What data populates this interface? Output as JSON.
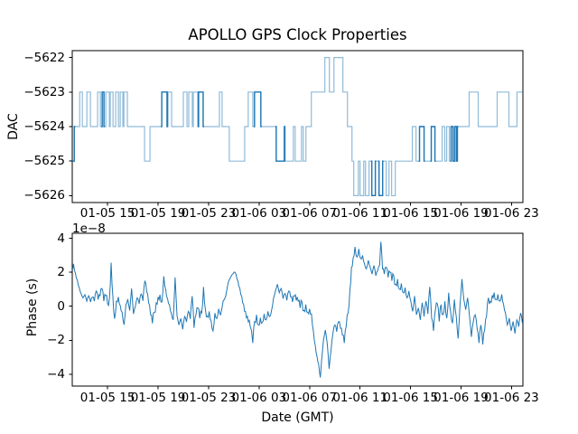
{
  "figure": {
    "title": "APOLLO GPS Clock Properties",
    "dac_ylabel": "DAC",
    "phase_ylabel": "Phase (s)",
    "xlabel": "Date (GMT)",
    "offset_text": "1e−8"
  },
  "colors": {
    "line": "#1f77b4",
    "axis": "#000000",
    "background": "#ffffff"
  },
  "chart_data": [
    {
      "type": "line",
      "subtype": "step-post",
      "title": "APOLLO GPS Clock Properties",
      "ylabel": "DAC",
      "grid": false,
      "legend": null,
      "x_unit": "hours offset within shown date range",
      "xlim": [
        0.2,
        35.9
      ],
      "ylim": [
        -5626.2,
        -5621.8
      ],
      "yticks": [
        -5622,
        -5623,
        -5624,
        -5625,
        -5626
      ],
      "xticks_hours": [
        3,
        7,
        11,
        15,
        19,
        23,
        27,
        31,
        35
      ],
      "xtick_labels": [
        "01-05 15",
        "01-05 19",
        "01-05 23",
        "01-06 03",
        "01-06 07",
        "01-06 11",
        "01-06 15",
        "01-06 19",
        "01-06 23"
      ],
      "steps": [
        [
          0.21,
          -5625
        ],
        [
          0.36,
          -5624
        ],
        [
          0.79,
          -5623
        ],
        [
          1.0,
          -5624
        ],
        [
          1.36,
          -5623
        ],
        [
          1.64,
          -5624
        ],
        [
          2.21,
          -5623
        ],
        [
          2.43,
          -5624
        ],
        [
          2.57,
          -5623
        ],
        [
          2.71,
          -5624
        ],
        [
          2.86,
          -5623
        ],
        [
          3.14,
          -5624
        ],
        [
          3.21,
          -5623
        ],
        [
          3.43,
          -5624
        ],
        [
          3.64,
          -5623
        ],
        [
          3.86,
          -5624
        ],
        [
          4.0,
          -5623
        ],
        [
          4.21,
          -5624
        ],
        [
          4.29,
          -5623
        ],
        [
          4.57,
          -5624
        ],
        [
          5.93,
          -5625
        ],
        [
          6.36,
          -5624
        ],
        [
          7.29,
          -5623
        ],
        [
          7.71,
          -5624
        ],
        [
          7.79,
          -5623
        ],
        [
          8.07,
          -5624
        ],
        [
          9.0,
          -5623
        ],
        [
          9.29,
          -5624
        ],
        [
          9.43,
          -5623
        ],
        [
          9.71,
          -5624
        ],
        [
          9.79,
          -5623
        ],
        [
          10.14,
          -5624
        ],
        [
          10.21,
          -5623
        ],
        [
          10.57,
          -5624
        ],
        [
          11.86,
          -5623
        ],
        [
          12.07,
          -5624
        ],
        [
          12.64,
          -5625
        ],
        [
          13.86,
          -5624
        ],
        [
          14.14,
          -5623
        ],
        [
          14.5,
          -5624
        ],
        [
          14.64,
          -5623
        ],
        [
          15.14,
          -5624
        ],
        [
          16.36,
          -5625
        ],
        [
          17.0,
          -5624
        ],
        [
          17.07,
          -5625
        ],
        [
          17.71,
          -5624
        ],
        [
          17.86,
          -5625
        ],
        [
          18.36,
          -5624
        ],
        [
          18.5,
          -5625
        ],
        [
          18.71,
          -5624
        ],
        [
          19.14,
          -5623
        ],
        [
          20.21,
          -5622
        ],
        [
          20.57,
          -5623
        ],
        [
          20.93,
          -5622
        ],
        [
          21.64,
          -5623
        ],
        [
          22.0,
          -5624
        ],
        [
          22.36,
          -5625
        ],
        [
          22.5,
          -5626
        ],
        [
          22.86,
          -5625
        ],
        [
          23.0,
          -5626
        ],
        [
          23.29,
          -5625
        ],
        [
          23.43,
          -5626
        ],
        [
          23.71,
          -5625
        ],
        [
          23.93,
          -5626
        ],
        [
          24.21,
          -5625
        ],
        [
          24.5,
          -5626
        ],
        [
          24.79,
          -5625
        ],
        [
          25.07,
          -5626
        ],
        [
          25.29,
          -5625
        ],
        [
          25.5,
          -5626
        ],
        [
          25.79,
          -5625
        ],
        [
          27.14,
          -5624
        ],
        [
          27.43,
          -5625
        ],
        [
          27.71,
          -5624
        ],
        [
          28.07,
          -5625
        ],
        [
          28.64,
          -5624
        ],
        [
          28.93,
          -5625
        ],
        [
          29.5,
          -5624
        ],
        [
          29.71,
          -5625
        ],
        [
          29.86,
          -5624
        ],
        [
          30.07,
          -5625
        ],
        [
          30.21,
          -5624
        ],
        [
          30.36,
          -5625
        ],
        [
          30.5,
          -5624
        ],
        [
          30.64,
          -5625
        ],
        [
          30.71,
          -5624
        ],
        [
          31.64,
          -5623
        ],
        [
          32.36,
          -5624
        ],
        [
          33.86,
          -5623
        ],
        [
          34.79,
          -5624
        ],
        [
          35.43,
          -5623
        ],
        [
          35.9,
          -5623
        ]
      ],
      "bold_intervals": [
        [
          0.21,
          0.38
        ],
        [
          2.57,
          2.71
        ],
        [
          7.29,
          7.71
        ],
        [
          10.21,
          10.57
        ],
        [
          14.64,
          15.14
        ],
        [
          16.36,
          17.0
        ],
        [
          23.93,
          24.21
        ],
        [
          24.5,
          24.79
        ],
        [
          27.71,
          28.07
        ],
        [
          28.64,
          28.93
        ],
        [
          30.21,
          30.71
        ]
      ]
    },
    {
      "type": "line",
      "ylabel": "Phase (s)",
      "xlabel": "Date (GMT)",
      "offset_text": "1e−8",
      "grid": false,
      "legend": null,
      "value_scale": 1e-08,
      "xlim": [
        0.2,
        35.9
      ],
      "ylim": [
        -4.7,
        4.3
      ],
      "yticks": [
        4,
        2,
        0,
        -2,
        -4
      ],
      "xticks_hours": [
        3,
        7,
        11,
        15,
        19,
        23,
        27,
        31,
        35
      ],
      "xtick_labels": [
        "01-05 15",
        "01-05 19",
        "01-05 23",
        "01-06 03",
        "01-06 07",
        "01-06 11",
        "01-06 15",
        "01-06 19",
        "01-06 23"
      ],
      "points": [
        [
          0.21,
          2.3
        ],
        [
          0.3,
          2.5
        ],
        [
          0.45,
          1.95
        ],
        [
          0.6,
          1.55
        ],
        [
          0.75,
          1.1
        ],
        [
          0.9,
          0.75
        ],
        [
          1.05,
          0.5
        ],
        [
          1.2,
          0.68
        ],
        [
          1.35,
          0.3
        ],
        [
          1.5,
          0.62
        ],
        [
          1.65,
          0.25
        ],
        [
          1.8,
          0.55
        ],
        [
          1.95,
          0.3
        ],
        [
          2.1,
          0.9
        ],
        [
          2.25,
          0.4
        ],
        [
          2.4,
          0.62
        ],
        [
          2.55,
          1.05
        ],
        [
          2.7,
          0.3
        ],
        [
          2.85,
          0.62
        ],
        [
          3.0,
          0.15
        ],
        [
          3.15,
          0.5
        ],
        [
          3.28,
          2.57
        ],
        [
          3.42,
          0.55
        ],
        [
          3.55,
          -0.73
        ],
        [
          3.7,
          0.3
        ],
        [
          3.85,
          0.55
        ],
        [
          4.0,
          0.05
        ],
        [
          4.15,
          -0.35
        ],
        [
          4.3,
          -1.09
        ],
        [
          4.45,
          0.1
        ],
        [
          4.6,
          0.42
        ],
        [
          4.75,
          -0.25
        ],
        [
          4.9,
          1.05
        ],
        [
          5.05,
          -0.45
        ],
        [
          5.2,
          0.0
        ],
        [
          5.35,
          0.5
        ],
        [
          5.5,
          0.15
        ],
        [
          5.65,
          0.72
        ],
        [
          5.8,
          0.32
        ],
        [
          5.95,
          1.5
        ],
        [
          6.1,
          0.85
        ],
        [
          6.25,
          0.2
        ],
        [
          6.4,
          -0.5
        ],
        [
          6.55,
          -1.0
        ],
        [
          6.7,
          -0.35
        ],
        [
          6.85,
          0.2
        ],
        [
          7.0,
          0.55
        ],
        [
          7.15,
          0.68
        ],
        [
          7.3,
          0.25
        ],
        [
          7.45,
          1.77
        ],
        [
          7.6,
          1.0
        ],
        [
          7.75,
          0.45
        ],
        [
          7.9,
          0.1
        ],
        [
          8.05,
          -0.42
        ],
        [
          8.2,
          -0.8
        ],
        [
          8.35,
          1.7
        ],
        [
          8.5,
          -0.55
        ],
        [
          8.65,
          -1.1
        ],
        [
          8.8,
          -0.72
        ],
        [
          8.95,
          -1.36
        ],
        [
          9.1,
          -0.6
        ],
        [
          9.25,
          -0.92
        ],
        [
          9.4,
          -0.3
        ],
        [
          9.55,
          -0.75
        ],
        [
          9.7,
          0.6
        ],
        [
          9.85,
          -1.27
        ],
        [
          10.0,
          -0.5
        ],
        [
          10.15,
          -0.1
        ],
        [
          10.3,
          -0.7
        ],
        [
          10.45,
          -0.4
        ],
        [
          10.6,
          1.14
        ],
        [
          10.75,
          -0.2
        ],
        [
          10.9,
          -0.58
        ],
        [
          11.05,
          -0.3
        ],
        [
          11.2,
          -0.85
        ],
        [
          11.35,
          -1.45
        ],
        [
          11.5,
          -0.4
        ],
        [
          11.65,
          -0.72
        ],
        [
          11.8,
          -0.15
        ],
        [
          11.95,
          -0.5
        ],
        [
          12.15,
          0.3
        ],
        [
          12.35,
          0.58
        ],
        [
          12.55,
          1.4
        ],
        [
          12.75,
          1.72
        ],
        [
          12.95,
          1.92
        ],
        [
          13.1,
          2.0
        ],
        [
          13.25,
          1.6
        ],
        [
          13.4,
          1.18
        ],
        [
          13.55,
          0.7
        ],
        [
          13.7,
          0.2
        ],
        [
          13.85,
          -0.3
        ],
        [
          14.0,
          -0.68
        ],
        [
          14.15,
          -0.92
        ],
        [
          14.3,
          -1.2
        ],
        [
          14.5,
          -2.16
        ],
        [
          14.65,
          -0.9
        ],
        [
          14.8,
          -0.5
        ],
        [
          14.95,
          -1.1
        ],
        [
          15.1,
          -0.68
        ],
        [
          15.25,
          -0.95
        ],
        [
          15.4,
          -0.45
        ],
        [
          15.55,
          -0.8
        ],
        [
          15.7,
          -0.3
        ],
        [
          15.85,
          -0.6
        ],
        [
          16.0,
          -0.2
        ],
        [
          16.15,
          0.5
        ],
        [
          16.3,
          0.92
        ],
        [
          16.45,
          1.3
        ],
        [
          16.6,
          0.8
        ],
        [
          16.75,
          1.05
        ],
        [
          16.9,
          0.45
        ],
        [
          17.05,
          0.75
        ],
        [
          17.2,
          0.35
        ],
        [
          17.35,
          0.9
        ],
        [
          17.5,
          0.55
        ],
        [
          17.65,
          0.25
        ],
        [
          17.8,
          0.6
        ],
        [
          17.95,
          0.34
        ],
        [
          18.1,
          0.3
        ],
        [
          18.25,
          -0.1
        ],
        [
          18.4,
          0.25
        ],
        [
          18.55,
          -0.25
        ],
        [
          18.7,
          0.1
        ],
        [
          18.85,
          -0.35
        ],
        [
          19.0,
          -0.15
        ],
        [
          19.15,
          -0.45
        ],
        [
          19.3,
          -1.45
        ],
        [
          19.45,
          -2.3
        ],
        [
          19.6,
          -3.0
        ],
        [
          19.72,
          -3.4
        ],
        [
          19.85,
          -4.2
        ],
        [
          19.95,
          -3.2
        ],
        [
          20.1,
          -2.0
        ],
        [
          20.25,
          -1.4
        ],
        [
          20.4,
          -2.2
        ],
        [
          20.55,
          -3.68
        ],
        [
          20.7,
          -2.6
        ],
        [
          20.85,
          -1.6
        ],
        [
          21.0,
          -1.1
        ],
        [
          21.15,
          -1.5
        ],
        [
          21.3,
          -0.9
        ],
        [
          21.45,
          -1.3
        ],
        [
          21.6,
          -1.7
        ],
        [
          21.75,
          -2.16
        ],
        [
          21.9,
          -1.2
        ],
        [
          22.05,
          -0.4
        ],
        [
          22.2,
          1.0
        ],
        [
          22.32,
          2.3
        ],
        [
          22.45,
          2.84
        ],
        [
          22.6,
          3.5
        ],
        [
          22.75,
          2.9
        ],
        [
          22.9,
          3.38
        ],
        [
          23.05,
          2.8
        ],
        [
          23.2,
          3.0
        ],
        [
          23.35,
          2.5
        ],
        [
          23.5,
          2.2
        ],
        [
          23.65,
          2.7
        ],
        [
          23.8,
          2.3
        ],
        [
          23.95,
          1.9
        ],
        [
          24.1,
          2.4
        ],
        [
          24.25,
          1.8
        ],
        [
          24.4,
          2.1
        ],
        [
          24.55,
          2.4
        ],
        [
          24.65,
          3.8
        ],
        [
          24.78,
          2.2
        ],
        [
          24.92,
          1.9
        ],
        [
          25.07,
          2.3
        ],
        [
          25.22,
          1.7
        ],
        [
          25.37,
          2.0
        ],
        [
          25.52,
          1.5
        ],
        [
          25.67,
          1.8
        ],
        [
          25.82,
          1.3
        ],
        [
          25.97,
          1.6
        ],
        [
          26.12,
          1.0
        ],
        [
          26.27,
          1.35
        ],
        [
          26.42,
          0.8
        ],
        [
          26.57,
          1.1
        ],
        [
          26.72,
          0.5
        ],
        [
          26.87,
          0.9
        ],
        [
          27.02,
          0.3
        ],
        [
          27.17,
          -0.3
        ],
        [
          27.32,
          0.6
        ],
        [
          27.47,
          -0.5
        ],
        [
          27.62,
          -0.1
        ],
        [
          27.77,
          -0.8
        ],
        [
          27.92,
          0.2
        ],
        [
          28.07,
          -0.6
        ],
        [
          28.22,
          0.3
        ],
        [
          28.37,
          -0.45
        ],
        [
          28.52,
          1.14
        ],
        [
          28.67,
          -0.7
        ],
        [
          28.82,
          -1.45
        ],
        [
          28.97,
          -0.2
        ],
        [
          29.12,
          0.15
        ],
        [
          29.27,
          -0.9
        ],
        [
          29.42,
          0.1
        ],
        [
          29.57,
          -0.5
        ],
        [
          29.72,
          0.3
        ],
        [
          29.87,
          -0.7
        ],
        [
          30.02,
          0.8
        ],
        [
          30.17,
          -0.3
        ],
        [
          30.32,
          -1.0
        ],
        [
          30.47,
          0.4
        ],
        [
          30.62,
          -0.6
        ],
        [
          30.77,
          -1.9
        ],
        [
          30.92,
          0.1
        ],
        [
          31.07,
          1.6
        ],
        [
          31.22,
          0.4
        ],
        [
          31.37,
          -0.2
        ],
        [
          31.52,
          0.5
        ],
        [
          31.67,
          -0.6
        ],
        [
          31.82,
          -1.8
        ],
        [
          31.97,
          -0.9
        ],
        [
          32.12,
          -0.5
        ],
        [
          32.27,
          -1.3
        ],
        [
          32.42,
          -2.16
        ],
        [
          32.57,
          -1.1
        ],
        [
          32.72,
          -2.25
        ],
        [
          32.87,
          -1.4
        ],
        [
          33.02,
          -0.6
        ],
        [
          33.17,
          0.5
        ],
        [
          33.32,
          0.3
        ],
        [
          33.47,
          0.65
        ],
        [
          33.62,
          0.8
        ],
        [
          33.77,
          0.4
        ],
        [
          33.92,
          0.7
        ],
        [
          34.07,
          0.3
        ],
        [
          34.22,
          0.7
        ],
        [
          34.37,
          0.1
        ],
        [
          34.52,
          -0.4
        ],
        [
          34.67,
          -1.1
        ],
        [
          34.82,
          -0.7
        ],
        [
          34.97,
          -1.45
        ],
        [
          35.12,
          -0.9
        ],
        [
          35.27,
          -1.6
        ],
        [
          35.42,
          -0.8
        ],
        [
          35.57,
          -1.2
        ],
        [
          35.72,
          -0.4
        ],
        [
          35.86,
          -1.0
        ]
      ]
    }
  ]
}
